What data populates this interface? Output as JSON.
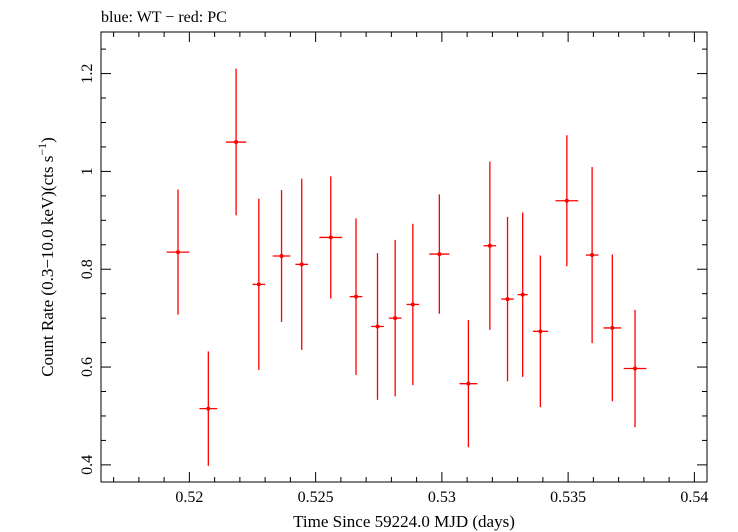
{
  "chart_data": {
    "type": "scatter",
    "title": "blue: WT − red: PC",
    "xlabel": "Time Since 59224.0 MJD (days)",
    "ylabel_main": "Count Rate (0.3−10.0 keV)(cts s",
    "ylabel_exp": "−1",
    "ylabel_close": ")",
    "xlim": [
      0.5165,
      0.5405
    ],
    "ylim": [
      0.365,
      1.285
    ],
    "x_ticks": [
      0.52,
      0.525,
      0.53,
      0.535,
      0.54
    ],
    "x_tick_labels": [
      "0.52",
      "0.525",
      "0.53",
      "0.535",
      "0.54"
    ],
    "y_ticks": [
      0.4,
      0.6,
      0.8,
      1.0,
      1.2
    ],
    "y_tick_labels": [
      "0.4",
      "0.6",
      "0.8",
      "1",
      "1.2"
    ],
    "grid": false,
    "series": [
      {
        "color": "#ff0000",
        "points": [
          {
            "x": 0.51955,
            "xerr": 0.00045,
            "y": 0.835,
            "yerr": 0.128
          },
          {
            "x": 0.52075,
            "xerr": 0.00035,
            "y": 0.515,
            "yerr": 0.117
          },
          {
            "x": 0.52185,
            "xerr": 0.0004,
            "y": 1.06,
            "yerr": 0.15
          },
          {
            "x": 0.52275,
            "xerr": 0.00025,
            "y": 0.769,
            "yerr": 0.175
          },
          {
            "x": 0.52365,
            "xerr": 0.00035,
            "y": 0.827,
            "yerr": 0.135
          },
          {
            "x": 0.52445,
            "xerr": 0.00025,
            "y": 0.81,
            "yerr": 0.175
          },
          {
            "x": 0.5256,
            "xerr": 0.00045,
            "y": 0.865,
            "yerr": 0.125
          },
          {
            "x": 0.5266,
            "xerr": 0.00025,
            "y": 0.744,
            "yerr": 0.16
          },
          {
            "x": 0.52745,
            "xerr": 0.00025,
            "y": 0.683,
            "yerr": 0.15
          },
          {
            "x": 0.52815,
            "xerr": 0.00025,
            "y": 0.7,
            "yerr": 0.16
          },
          {
            "x": 0.52885,
            "xerr": 0.00025,
            "y": 0.728,
            "yerr": 0.165
          },
          {
            "x": 0.5299,
            "xerr": 0.0004,
            "y": 0.831,
            "yerr": 0.122
          },
          {
            "x": 0.53105,
            "xerr": 0.00035,
            "y": 0.566,
            "yerr": 0.13
          },
          {
            "x": 0.5319,
            "xerr": 0.00025,
            "y": 0.848,
            "yerr": 0.172
          },
          {
            "x": 0.5326,
            "xerr": 0.00025,
            "y": 0.739,
            "yerr": 0.168
          },
          {
            "x": 0.5332,
            "xerr": 0.0002,
            "y": 0.748,
            "yerr": 0.168
          },
          {
            "x": 0.5339,
            "xerr": 0.0003,
            "y": 0.673,
            "yerr": 0.155
          },
          {
            "x": 0.53495,
            "xerr": 0.00045,
            "y": 0.94,
            "yerr": 0.134
          },
          {
            "x": 0.53595,
            "xerr": 0.00025,
            "y": 0.829,
            "yerr": 0.18
          },
          {
            "x": 0.53675,
            "xerr": 0.00035,
            "y": 0.68,
            "yerr": 0.15
          },
          {
            "x": 0.53765,
            "xerr": 0.00045,
            "y": 0.597,
            "yerr": 0.12
          }
        ]
      }
    ]
  }
}
